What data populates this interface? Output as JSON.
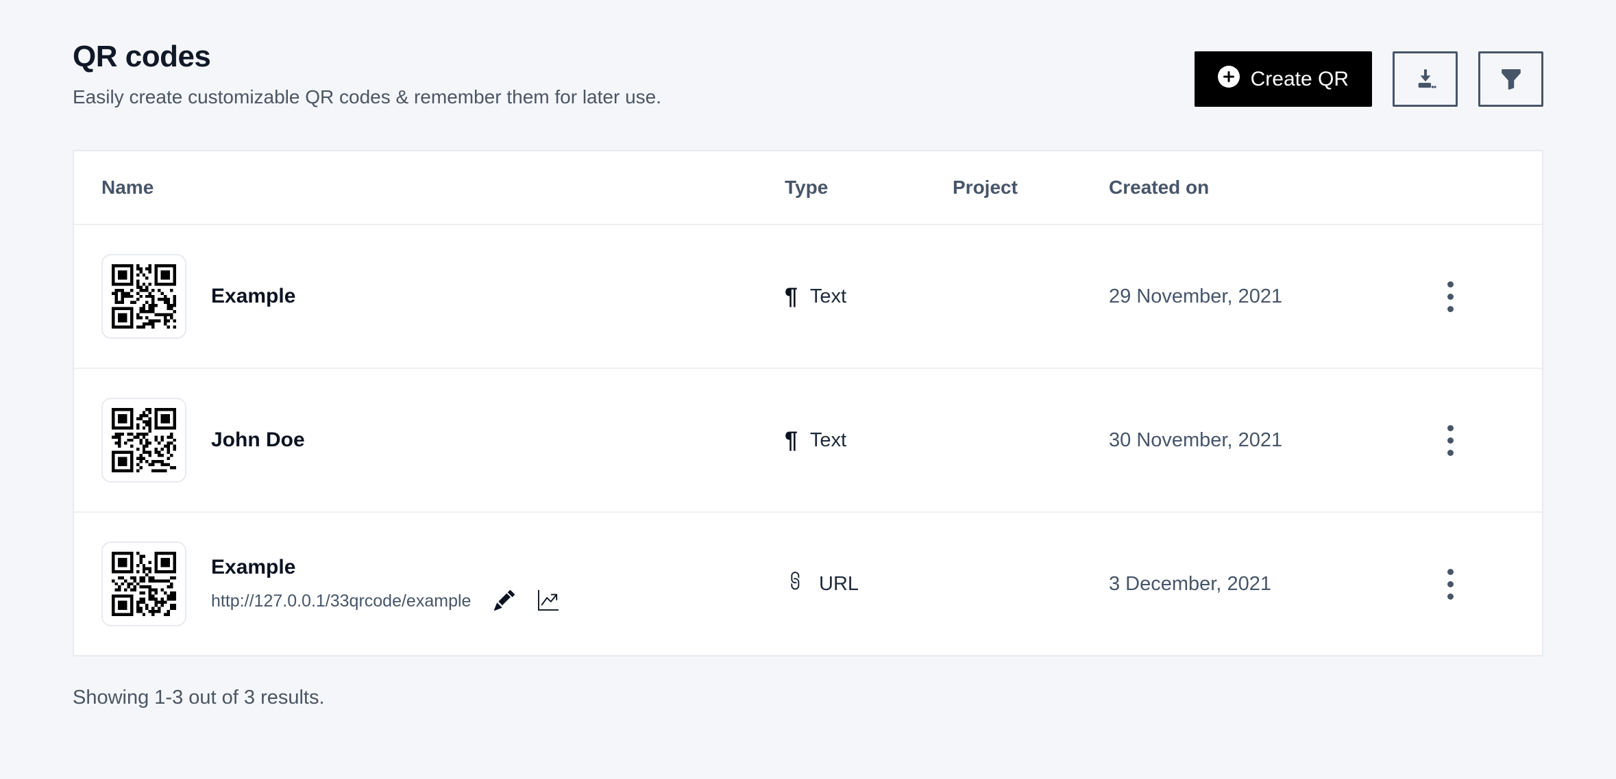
{
  "page": {
    "title": "QR codes",
    "subtitle": "Easily create customizable QR codes & remember them for later use.",
    "footer": "Showing 1-3 out of 3 results."
  },
  "toolbar": {
    "create_button": {
      "label": "Create QR",
      "icon": "plus-circle-icon"
    },
    "download_button": {
      "icon": "download-icon"
    },
    "filter_button": {
      "icon": "filter-icon"
    }
  },
  "table": {
    "columns": {
      "name": "Name",
      "type": "Type",
      "project": "Project",
      "created_on": "Created on"
    },
    "rows": [
      {
        "name": "Example",
        "type": "Text",
        "type_icon": "pilcrow-icon",
        "project": "",
        "created_on": "29 November, 2021"
      },
      {
        "name": "John Doe",
        "type": "Text",
        "type_icon": "pilcrow-icon",
        "project": "",
        "created_on": "30 November, 2021"
      },
      {
        "name": "Example",
        "url": "http://127.0.0.1/33qrcode/example",
        "type": "URL",
        "type_icon": "link-icon",
        "project": "",
        "created_on": "3 December, 2021"
      }
    ]
  },
  "icons": {
    "pilcrow_glyph": "¶"
  },
  "colors": {
    "page_bg": "#f4f6f9",
    "primary_button_bg": "#000000",
    "primary_button_text": "#ffffff",
    "secondary_ink": "#475569",
    "card_border": "#e7eaf0",
    "qr_module": "#000000"
  }
}
